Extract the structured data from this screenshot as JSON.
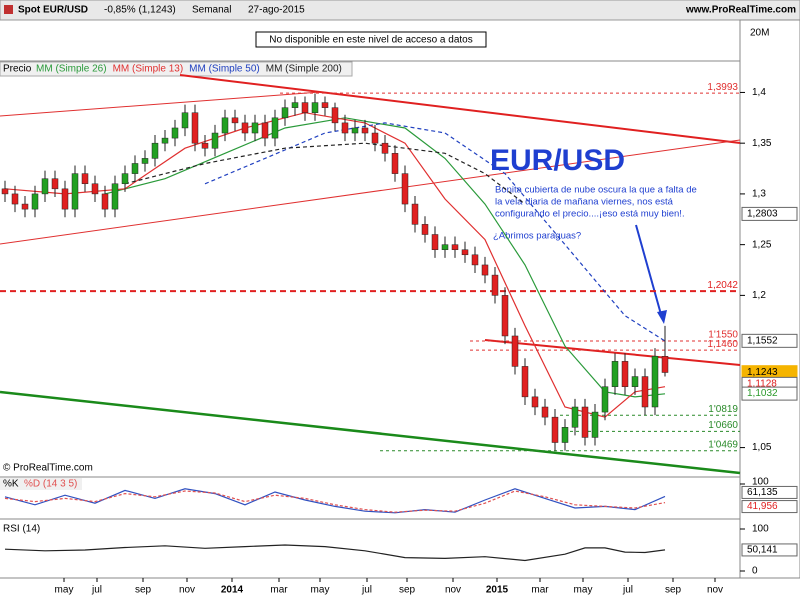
{
  "chart_data": {
    "type": "candlestick",
    "title": "Spot EUR/USD",
    "change": "-0,85% (1,1243)",
    "period": "Semanal",
    "date": "27-ago-2015",
    "site": "www.ProRealTime.com",
    "notice": "No disponible en este nivel de acceso a datos",
    "copyright": "© ProRealTime.com",
    "volume_label": "20M",
    "price_label": "Precio",
    "annotation_title": "EUR/USD",
    "annotation_text": [
      "Bonita cubierta de nube oscura la que a falta de",
      "la vela diaria de mañana viernes, nos está",
      "configurando el precio....¡eso está muy bien!."
    ],
    "annotation_question": "¿Abrimos paraguas?",
    "up_color": "#22a022",
    "down_color": "#e02020",
    "xlim": [
      -0.5,
      73.5
    ],
    "xticks": [
      {
        "value": 5.9,
        "label": "may"
      },
      {
        "value": 9.2,
        "label": "jul"
      },
      {
        "value": 13.8,
        "label": "sep"
      },
      {
        "value": 18.2,
        "label": "nov"
      },
      {
        "value": 22.7,
        "label": "2014"
      },
      {
        "value": 27.4,
        "label": "mar"
      },
      {
        "value": 31.5,
        "label": "may"
      },
      {
        "value": 36.2,
        "label": "jul"
      },
      {
        "value": 40.2,
        "label": "sep"
      },
      {
        "value": 44.8,
        "label": "nov"
      },
      {
        "value": 49.2,
        "label": "2015"
      },
      {
        "value": 53.5,
        "label": "mar"
      },
      {
        "value": 57.8,
        "label": "may"
      },
      {
        "value": 62.3,
        "label": "jul"
      },
      {
        "value": 66.8,
        "label": "sep"
      },
      {
        "value": 71,
        "label": "nov"
      }
    ],
    "ylim": [
      1.022,
      1.43
    ],
    "yticks": [
      {
        "value": 1.4,
        "label": "1,4"
      },
      {
        "value": 1.35,
        "label": "1,35"
      },
      {
        "value": 1.3,
        "label": "1,3"
      },
      {
        "value": 1.25,
        "label": "1,25"
      },
      {
        "value": 1.2,
        "label": "1,2"
      },
      {
        "value": 1.05,
        "label": "1,05"
      }
    ],
    "candles": [
      [
        1.305,
        1.313,
        1.292,
        1.3
      ],
      [
        1.3,
        1.308,
        1.282,
        1.29
      ],
      [
        1.29,
        1.298,
        1.277,
        1.285
      ],
      [
        1.285,
        1.308,
        1.277,
        1.3
      ],
      [
        1.3,
        1.323,
        1.292,
        1.315
      ],
      [
        1.315,
        1.323,
        1.297,
        1.305
      ],
      [
        1.305,
        1.313,
        1.277,
        1.285
      ],
      [
        1.285,
        1.328,
        1.277,
        1.32
      ],
      [
        1.32,
        1.328,
        1.302,
        1.31
      ],
      [
        1.31,
        1.318,
        1.292,
        1.3
      ],
      [
        1.3,
        1.308,
        1.277,
        1.285
      ],
      [
        1.285,
        1.318,
        1.277,
        1.31
      ],
      [
        1.31,
        1.328,
        1.302,
        1.32
      ],
      [
        1.32,
        1.338,
        1.312,
        1.33
      ],
      [
        1.33,
        1.343,
        1.322,
        1.335
      ],
      [
        1.335,
        1.358,
        1.327,
        1.35
      ],
      [
        1.35,
        1.363,
        1.342,
        1.355
      ],
      [
        1.355,
        1.373,
        1.347,
        1.365
      ],
      [
        1.365,
        1.388,
        1.357,
        1.38
      ],
      [
        1.38,
        1.388,
        1.342,
        1.35
      ],
      [
        1.35,
        1.358,
        1.337,
        1.345
      ],
      [
        1.345,
        1.368,
        1.337,
        1.36
      ],
      [
        1.36,
        1.383,
        1.352,
        1.375
      ],
      [
        1.375,
        1.383,
        1.362,
        1.37
      ],
      [
        1.37,
        1.378,
        1.352,
        1.36
      ],
      [
        1.36,
        1.378,
        1.352,
        1.37
      ],
      [
        1.37,
        1.378,
        1.347,
        1.355
      ],
      [
        1.355,
        1.383,
        1.347,
        1.375
      ],
      [
        1.375,
        1.393,
        1.367,
        1.385
      ],
      [
        1.385,
        1.396,
        1.377,
        1.39
      ],
      [
        1.39,
        1.396,
        1.372,
        1.38
      ],
      [
        1.38,
        1.399,
        1.372,
        1.39
      ],
      [
        1.39,
        1.396,
        1.377,
        1.385
      ],
      [
        1.385,
        1.39,
        1.362,
        1.37
      ],
      [
        1.37,
        1.378,
        1.352,
        1.36
      ],
      [
        1.36,
        1.373,
        1.352,
        1.365
      ],
      [
        1.365,
        1.373,
        1.352,
        1.36
      ],
      [
        1.36,
        1.368,
        1.342,
        1.35
      ],
      [
        1.35,
        1.358,
        1.332,
        1.34
      ],
      [
        1.34,
        1.348,
        1.312,
        1.32
      ],
      [
        1.32,
        1.328,
        1.282,
        1.29
      ],
      [
        1.29,
        1.298,
        1.262,
        1.27
      ],
      [
        1.27,
        1.278,
        1.252,
        1.26
      ],
      [
        1.26,
        1.268,
        1.237,
        1.245
      ],
      [
        1.245,
        1.258,
        1.237,
        1.25
      ],
      [
        1.25,
        1.258,
        1.237,
        1.245
      ],
      [
        1.245,
        1.253,
        1.232,
        1.24
      ],
      [
        1.24,
        1.248,
        1.222,
        1.23
      ],
      [
        1.23,
        1.238,
        1.212,
        1.22
      ],
      [
        1.22,
        1.228,
        1.192,
        1.2
      ],
      [
        1.2,
        1.208,
        1.152,
        1.16
      ],
      [
        1.16,
        1.168,
        1.122,
        1.13
      ],
      [
        1.13,
        1.138,
        1.092,
        1.1
      ],
      [
        1.1,
        1.108,
        1.082,
        1.09
      ],
      [
        1.09,
        1.098,
        1.072,
        1.08
      ],
      [
        1.08,
        1.088,
        1.047,
        1.055
      ],
      [
        1.055,
        1.078,
        1.047,
        1.07
      ],
      [
        1.07,
        1.098,
        1.062,
        1.09
      ],
      [
        1.09,
        1.098,
        1.052,
        1.06
      ],
      [
        1.06,
        1.093,
        1.052,
        1.085
      ],
      [
        1.085,
        1.118,
        1.077,
        1.11
      ],
      [
        1.11,
        1.143,
        1.102,
        1.135
      ],
      [
        1.135,
        1.143,
        1.102,
        1.11
      ],
      [
        1.11,
        1.128,
        1.102,
        1.12
      ],
      [
        1.12,
        1.128,
        1.082,
        1.09
      ],
      [
        1.09,
        1.148,
        1.082,
        1.14
      ],
      [
        1.14,
        1.17,
        1.12,
        1.124
      ]
    ],
    "series": [
      {
        "name": "MM (Simple 26)",
        "color": "#2a9a3a",
        "dash": false,
        "x": [
          10,
          16,
          22,
          28,
          34,
          40,
          44,
          48,
          52,
          56,
          60,
          63,
          66
        ],
        "values": [
          1.3,
          1.315,
          1.34,
          1.365,
          1.375,
          1.365,
          1.335,
          1.29,
          1.23,
          1.15,
          1.105,
          1.1,
          1.103
        ]
      },
      {
        "name": "MM (Simple 13)",
        "color": "#e03030",
        "dash": false,
        "x": [
          0,
          6,
          12,
          18,
          24,
          30,
          36,
          40,
          44,
          48,
          52,
          56,
          60,
          63,
          66
        ],
        "values": [
          1.305,
          1.3,
          1.305,
          1.345,
          1.365,
          1.38,
          1.37,
          1.35,
          1.295,
          1.255,
          1.17,
          1.09,
          1.08,
          1.105,
          1.11
        ]
      },
      {
        "name": "MM (Simple 50)",
        "color": "#2040c0",
        "dash": true,
        "x": [
          20,
          26,
          32,
          38,
          44,
          50,
          56,
          62,
          66
        ],
        "values": [
          1.31,
          1.335,
          1.36,
          1.37,
          1.36,
          1.32,
          1.25,
          1.18,
          1.155
        ]
      },
      {
        "name": "MM (Simple 200)",
        "color": "#222222",
        "dash": true,
        "x": [
          12,
          20,
          28,
          36,
          44,
          48,
          52
        ],
        "values": [
          1.31,
          1.33,
          1.345,
          1.35,
          1.34,
          1.32,
          1.29
        ]
      }
    ],
    "levels": [
      {
        "value": 1.3993,
        "label": "1,3993",
        "color": "#e03030"
      },
      {
        "value": 1.2042,
        "label": "1,2042",
        "color": "#e02020"
      },
      {
        "value": 1.155,
        "label": "1'1550",
        "color": "#e03030"
      },
      {
        "value": 1.146,
        "label": "1,1460",
        "color": "#e03030"
      },
      {
        "value": 1.0819,
        "label": "1'0819",
        "color": "#2a8a2a"
      },
      {
        "value": 1.066,
        "label": "1'0660",
        "color": "#2a8a2a"
      },
      {
        "value": 1.0469,
        "label": "1'0469",
        "color": "#2a8a2a"
      }
    ],
    "price_tags": [
      {
        "value": 1.2803,
        "label": "1,2803",
        "color": "#000000",
        "fill": "#ffffff"
      },
      {
        "value": 1.1552,
        "label": "1,1552",
        "color": "#000000",
        "fill": "#ffffff"
      },
      {
        "value": 1.1243,
        "label": "1,1243",
        "color": "#000000",
        "fill": "#f5b400"
      },
      {
        "value": 1.1128,
        "label": "1,1128",
        "color": "#e02020",
        "fill": "#ffffff"
      },
      {
        "value": 1.1032,
        "label": "1,1032",
        "color": "#2a9a2a",
        "fill": "#ffffff"
      }
    ],
    "stochastic": {
      "label_k": "%K",
      "label_d": "%D (14 3 5)",
      "ylim": [
        0,
        100
      ],
      "yticks": [
        100
      ],
      "series": [
        {
          "name": "%K",
          "color": "#3050c0",
          "x": [
            0,
            3,
            6,
            9,
            12,
            15,
            18,
            21,
            24,
            27,
            30,
            33,
            36,
            39,
            42,
            45,
            48,
            51,
            54,
            57,
            60,
            63,
            66
          ],
          "values": [
            60,
            35,
            65,
            40,
            80,
            55,
            85,
            70,
            35,
            75,
            50,
            30,
            15,
            10,
            20,
            12,
            50,
            85,
            55,
            25,
            30,
            20,
            61.135
          ]
        },
        {
          "name": "%D",
          "color": "#e05050",
          "x": [
            0,
            3,
            6,
            9,
            12,
            15,
            18,
            21,
            24,
            27,
            30,
            33,
            36,
            39,
            42,
            45,
            48,
            51,
            54,
            57,
            60,
            63,
            66
          ],
          "values": [
            55,
            45,
            55,
            45,
            70,
            60,
            78,
            72,
            45,
            65,
            55,
            35,
            20,
            12,
            18,
            15,
            40,
            78,
            60,
            35,
            30,
            25,
            41.956
          ]
        }
      ],
      "tags": [
        {
          "value": 61.135,
          "label": "61,135",
          "color": "#000000"
        },
        {
          "value": 41.956,
          "label": "41,956",
          "color": "#e02020"
        }
      ]
    },
    "rsi": {
      "label": "RSI (14)",
      "ylim": [
        0,
        100
      ],
      "yticks": [
        100,
        0
      ],
      "x": [
        0,
        4,
        8,
        12,
        16,
        20,
        24,
        28,
        32,
        36,
        40,
        44,
        48,
        52,
        56,
        58,
        60,
        62,
        64,
        66
      ],
      "values": [
        52,
        48,
        50,
        56,
        60,
        54,
        58,
        62,
        58,
        48,
        32,
        30,
        34,
        25,
        40,
        55,
        55,
        45,
        44,
        50.141
      ],
      "tag": {
        "value": 50.141,
        "label": "50,141"
      }
    }
  }
}
